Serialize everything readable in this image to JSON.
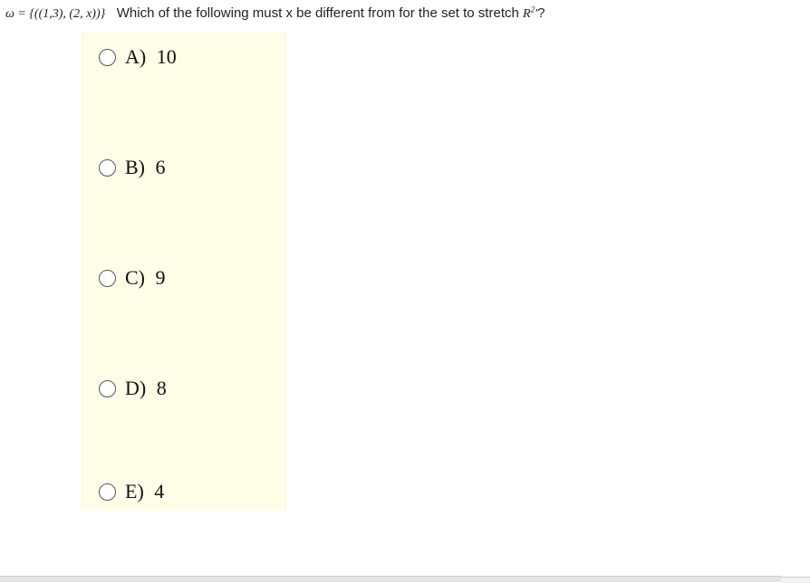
{
  "question": {
    "set_expr": "ω = {((1,3), (2, x))}",
    "text_before": "Which of the following must x be different from for the set to stretch",
    "space_symbol": "R²'",
    "text_after": "?"
  },
  "options": [
    {
      "letter": "A)",
      "value": "10"
    },
    {
      "letter": "B)",
      "value": "6"
    },
    {
      "letter": "C)",
      "value": "9"
    },
    {
      "letter": "D)",
      "value": "8"
    },
    {
      "letter": "E)",
      "value": "4"
    }
  ],
  "colors": {
    "option_bg": "#fdfde8",
    "page_bg": "#ffffff",
    "text": "#222222",
    "radio_border": "#555555"
  }
}
